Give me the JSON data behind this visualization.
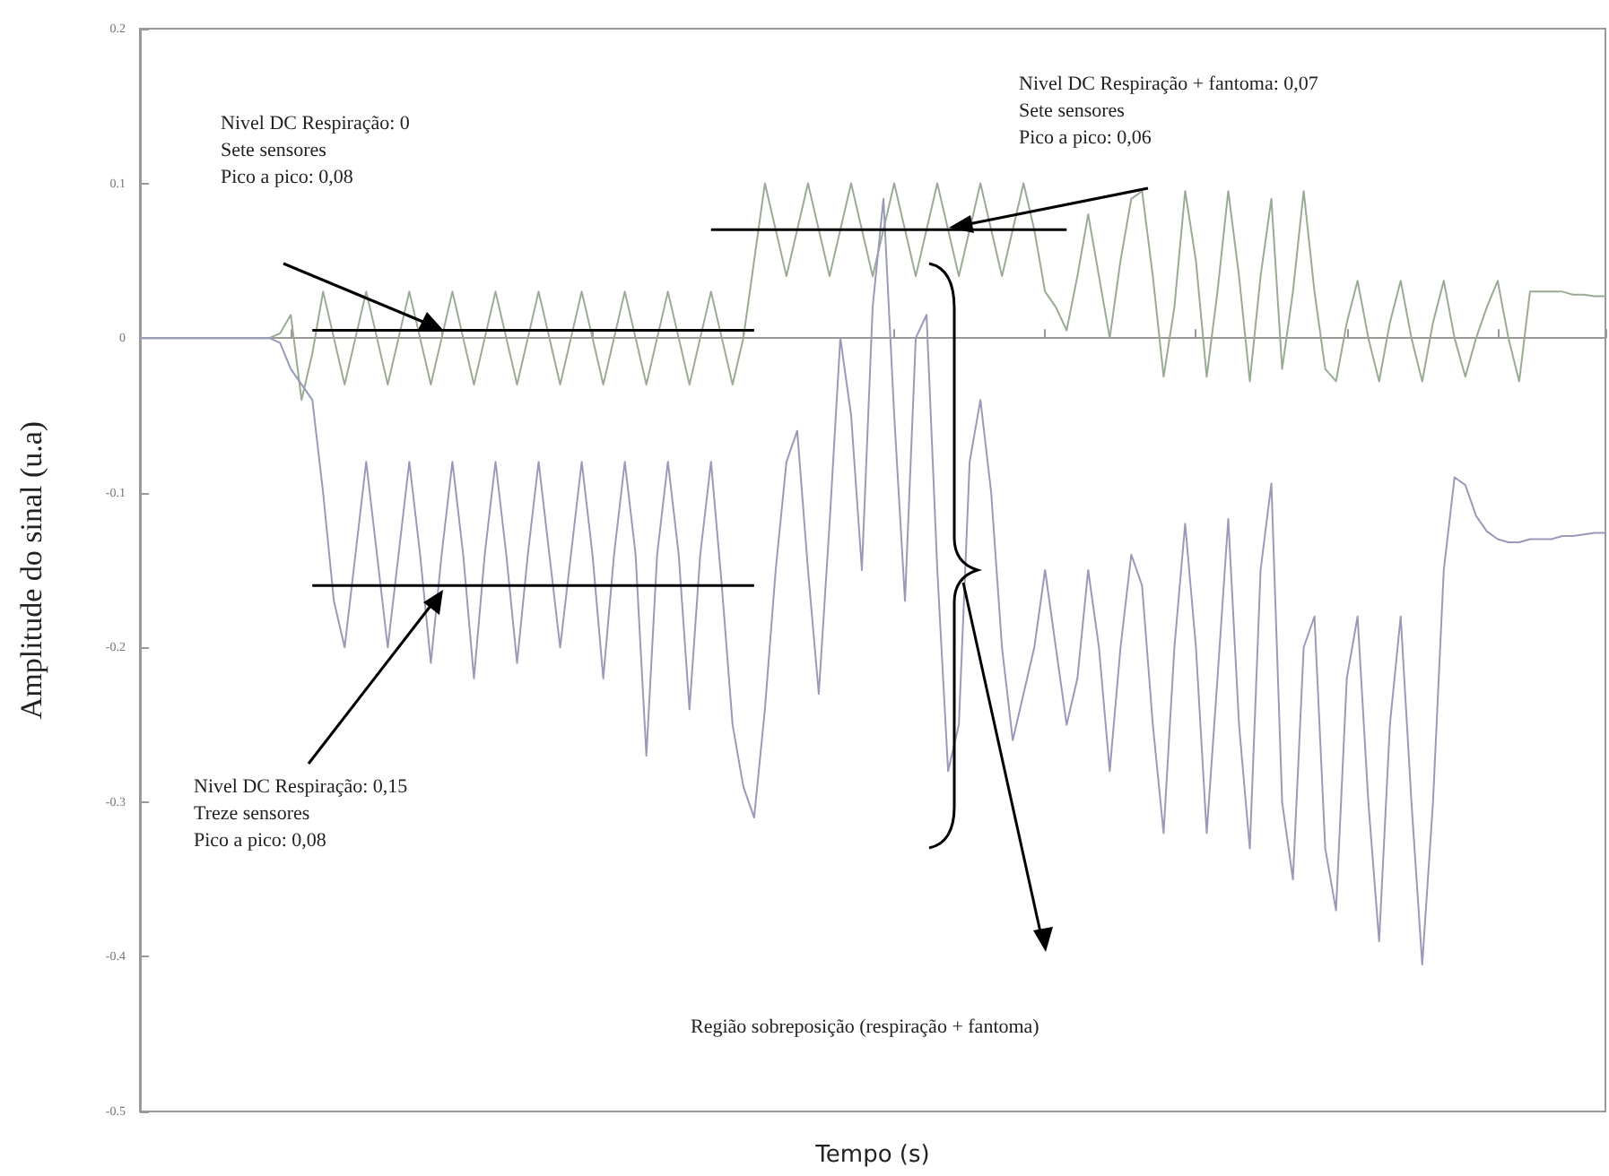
{
  "chart_data": {
    "type": "line",
    "xlabel": "Tempo (s)",
    "ylabel": "Amplitude do sinal (u.a)",
    "ylim": [
      -0.5,
      0.2
    ],
    "yticks": [
      -0.5,
      -0.4,
      -0.3,
      -0.2,
      -0.1,
      0,
      0.1,
      0.2
    ],
    "tick_labels": "y",
    "categories": [
      null,
      null,
      null,
      null,
      null,
      null,
      null,
      null,
      null,
      null,
      null,
      null,
      null,
      null,
      null,
      null,
      null,
      null,
      null,
      null,
      null,
      null,
      null,
      null,
      null,
      null,
      null,
      null,
      null,
      null,
      null,
      null,
      null,
      null,
      null,
      null,
      null,
      null,
      null,
      null,
      null,
      null,
      null,
      null,
      null,
      null,
      null,
      null,
      null,
      null,
      null,
      null,
      null,
      null,
      null,
      null,
      null,
      null,
      null,
      null,
      null,
      null,
      null,
      null,
      null,
      null,
      null,
      null,
      null,
      null,
      null,
      null,
      null,
      null,
      null,
      null,
      null,
      null,
      null,
      null,
      null,
      null,
      null,
      null,
      null,
      null,
      null,
      null,
      null,
      null,
      null,
      null,
      null,
      null,
      null,
      null,
      null,
      null,
      null,
      null,
      null,
      null,
      null,
      null,
      null,
      null,
      null,
      null,
      null,
      null,
      null,
      null,
      null,
      null,
      null,
      null,
      null,
      null,
      null,
      null,
      null,
      null,
      null,
      null,
      null,
      null,
      null,
      null,
      null,
      null,
      null,
      null,
      null,
      null,
      null,
      null,
      null
    ],
    "series": [
      {
        "color": "#9aab94",
        "values": [
          0,
          0,
          0,
          0,
          0,
          0,
          0,
          0,
          0,
          0,
          0,
          0,
          0,
          0.003,
          0.015,
          -0.04,
          -0.01,
          0.03,
          0,
          -0.03,
          0,
          0.03,
          0,
          -0.03,
          0,
          0.03,
          0,
          -0.03,
          0,
          0.03,
          0,
          -0.03,
          0,
          0.03,
          0,
          -0.03,
          0,
          0.03,
          0,
          -0.03,
          0,
          0.03,
          0,
          -0.03,
          0,
          0.03,
          0,
          -0.03,
          0,
          0.03,
          0,
          -0.03,
          0,
          0.03,
          0,
          -0.03,
          0,
          0.05,
          0.1,
          0.07,
          0.04,
          0.07,
          0.1,
          0.07,
          0.04,
          0.07,
          0.1,
          0.07,
          0.04,
          0.07,
          0.1,
          0.07,
          0.04,
          0.07,
          0.1,
          0.07,
          0.04,
          0.07,
          0.1,
          0.07,
          0.04,
          0.07,
          0.1,
          0.07,
          0.03,
          0.02,
          0.005,
          0.04,
          0.08,
          0.04,
          0,
          0.05,
          0.09,
          0.095,
          0.04,
          -0.025,
          0.02,
          0.095,
          0.05,
          -0.025,
          0.03,
          0.095,
          0.04,
          -0.028,
          0.04,
          0.09,
          -0.02,
          0.03,
          0.095,
          0.03,
          -0.02,
          -0.028,
          0.01,
          0.037,
          0,
          -0.028,
          0.01,
          0.037,
          0,
          -0.028,
          0.01,
          0.037,
          0,
          -0.025,
          0,
          0.02,
          0.037,
          0,
          -0.028,
          0.03,
          0.03,
          0.03,
          0.03,
          0.028,
          0.028,
          0.027,
          0.027
        ]
      },
      {
        "color": "#9a9ab8",
        "values": [
          0,
          0,
          0,
          0,
          0,
          0,
          0,
          0,
          0,
          0,
          0,
          0,
          0,
          -0.003,
          -0.02,
          -0.03,
          -0.04,
          -0.1,
          -0.17,
          -0.2,
          -0.14,
          -0.08,
          -0.14,
          -0.2,
          -0.14,
          -0.08,
          -0.14,
          -0.21,
          -0.14,
          -0.08,
          -0.14,
          -0.22,
          -0.14,
          -0.08,
          -0.14,
          -0.21,
          -0.14,
          -0.08,
          -0.14,
          -0.2,
          -0.14,
          -0.08,
          -0.14,
          -0.22,
          -0.14,
          -0.08,
          -0.14,
          -0.27,
          -0.14,
          -0.08,
          -0.14,
          -0.24,
          -0.14,
          -0.08,
          -0.16,
          -0.25,
          -0.29,
          -0.31,
          -0.24,
          -0.15,
          -0.08,
          -0.06,
          -0.15,
          -0.23,
          -0.12,
          0,
          -0.05,
          -0.15,
          0.02,
          0.09,
          -0.05,
          -0.17,
          0,
          0.015,
          -0.15,
          -0.28,
          -0.25,
          -0.08,
          -0.04,
          -0.1,
          -0.2,
          -0.26,
          -0.23,
          -0.2,
          -0.15,
          -0.2,
          -0.25,
          -0.22,
          -0.15,
          -0.2,
          -0.28,
          -0.2,
          -0.14,
          -0.16,
          -0.25,
          -0.32,
          -0.2,
          -0.12,
          -0.2,
          -0.32,
          -0.22,
          -0.117,
          -0.25,
          -0.33,
          -0.15,
          -0.094,
          -0.3,
          -0.35,
          -0.2,
          -0.18,
          -0.33,
          -0.37,
          -0.22,
          -0.18,
          -0.3,
          -0.39,
          -0.25,
          -0.18,
          -0.3,
          -0.405,
          -0.3,
          -0.15,
          -0.09,
          -0.095,
          -0.115,
          -0.125,
          -0.13,
          -0.132,
          -0.132,
          -0.13,
          -0.13,
          -0.13,
          -0.128,
          -0.128,
          -0.127,
          -0.126,
          -0.126
        ]
      },
      {
        "color": "#000000",
        "values": [
          null,
          null,
          null,
          null,
          null,
          null,
          null,
          null,
          null,
          null,
          null,
          null,
          null,
          null,
          null,
          null,
          0.005,
          0.005,
          0.005,
          0.005,
          0.005,
          0.005,
          0.005,
          0.005,
          0.005,
          0.005,
          0.005,
          0.005,
          0.005,
          0.005,
          0.005,
          0.005,
          0.005,
          0.005,
          0.005,
          0.005,
          0.005,
          0.005,
          0.005,
          0.005,
          0.005,
          0.005,
          0.005,
          0.005,
          0.005,
          0.005,
          0.005,
          0.005,
          0.005,
          0.005,
          0.005,
          0.005,
          0.005,
          0.005,
          0.005,
          0.005,
          0.005,
          0.005,
          null,
          null,
          null,
          null,
          null,
          null,
          null,
          null,
          null,
          null,
          null,
          null,
          null,
          null,
          null,
          null,
          null,
          null,
          null,
          null,
          null,
          null,
          null,
          null,
          null,
          null,
          null,
          null,
          null,
          null,
          null,
          null,
          null,
          null,
          null,
          null,
          null,
          null,
          null,
          null,
          null,
          null,
          null,
          null,
          null,
          null,
          null,
          null,
          null,
          null,
          null,
          null,
          null,
          null,
          null,
          null,
          null,
          null,
          null,
          null,
          null,
          null,
          null,
          null,
          null,
          null,
          null,
          null,
          null,
          null,
          null,
          null,
          null,
          null,
          null,
          null,
          null,
          null,
          null
        ]
      },
      {
        "color": "#000000",
        "values": [
          null,
          null,
          null,
          null,
          null,
          null,
          null,
          null,
          null,
          null,
          null,
          null,
          null,
          null,
          null,
          null,
          -0.16,
          -0.16,
          -0.16,
          -0.16,
          -0.16,
          -0.16,
          -0.16,
          -0.16,
          -0.16,
          -0.16,
          -0.16,
          -0.16,
          -0.16,
          -0.16,
          -0.16,
          -0.16,
          -0.16,
          -0.16,
          -0.16,
          -0.16,
          -0.16,
          -0.16,
          -0.16,
          -0.16,
          -0.16,
          -0.16,
          -0.16,
          -0.16,
          -0.16,
          -0.16,
          -0.16,
          -0.16,
          -0.16,
          -0.16,
          -0.16,
          -0.16,
          -0.16,
          -0.16,
          -0.16,
          -0.16,
          -0.16,
          -0.16,
          null,
          null,
          null,
          null,
          null,
          null,
          null,
          null,
          null,
          null,
          null,
          null,
          null,
          null,
          null,
          null,
          null,
          null,
          null,
          null,
          null,
          null,
          null,
          null,
          null,
          null,
          null,
          null,
          null,
          null,
          null,
          null,
          null,
          null,
          null,
          null,
          null,
          null,
          null,
          null,
          null,
          null,
          null,
          null,
          null,
          null,
          null,
          null,
          null,
          null,
          null,
          null,
          null,
          null,
          null,
          null,
          null,
          null,
          null,
          null,
          null,
          null,
          null,
          null,
          null,
          null,
          null,
          null,
          null,
          null,
          null,
          null,
          null,
          null,
          null,
          null,
          null,
          null,
          null
        ]
      },
      {
        "color": "#000000",
        "values": [
          null,
          null,
          null,
          null,
          null,
          null,
          null,
          null,
          null,
          null,
          null,
          null,
          null,
          null,
          null,
          null,
          null,
          null,
          null,
          null,
          null,
          null,
          null,
          null,
          null,
          null,
          null,
          null,
          null,
          null,
          null,
          null,
          null,
          null,
          null,
          null,
          null,
          null,
          null,
          null,
          null,
          null,
          null,
          null,
          null,
          null,
          null,
          null,
          null,
          null,
          null,
          null,
          null,
          0.07,
          0.07,
          0.07,
          0.07,
          0.07,
          0.07,
          0.07,
          0.07,
          0.07,
          0.07,
          0.07,
          0.07,
          0.07,
          0.07,
          0.07,
          0.07,
          0.07,
          0.07,
          0.07,
          0.07,
          0.07,
          0.07,
          0.07,
          0.07,
          0.07,
          0.07,
          0.07,
          0.07,
          0.07,
          0.07,
          0.07,
          0.07,
          0.07,
          0.07,
          null,
          null,
          null,
          null,
          null,
          null,
          null,
          null,
          null,
          null,
          null,
          null,
          null,
          null,
          null,
          null,
          null,
          null,
          null,
          null,
          null,
          null,
          null,
          null,
          null,
          null,
          null,
          null,
          null,
          null,
          null,
          null,
          null,
          null,
          null,
          null,
          null,
          null,
          null,
          null,
          null,
          null,
          null,
          null,
          null,
          null,
          null,
          null,
          null,
          null
        ]
      }
    ],
    "annotations": [
      "Nivel DC Respiração: 0\nSete sensores\nPico a pico: 0,08",
      "Nivel DC Respiração + fantoma: 0,07\nSete sensores\nPico a pico: 0,06",
      "Nivel DC Respiração: 0,15\nTreze sensores\nPico a pico: 0,08",
      "Região sobreposição (respiração + fantoma)"
    ]
  }
}
